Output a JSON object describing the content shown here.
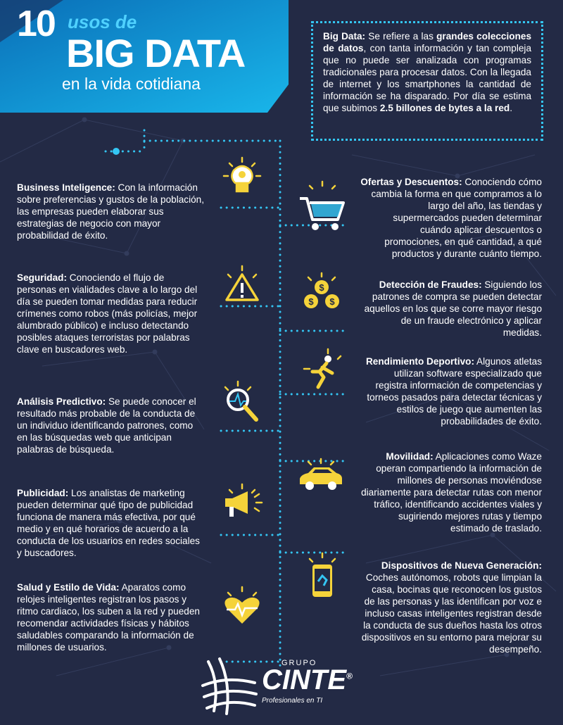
{
  "header": {
    "number": "10",
    "usos": "usos de",
    "big_data": "BIG DATA",
    "subtitle": "en la vida cotidiana"
  },
  "intro": {
    "term": "Big Data:",
    "p1": " Se refiere a las ",
    "bold1": "grandes colecciones de datos",
    "p2": ", con tanta información y tan compleja que no puede ser analizada con programas tradicionales para procesar datos. Con la llegada de internet y los smartphones la cantidad de información se ha disparado. Por día se estima que subimos ",
    "bold2": "2.5 billones de bytes a la red",
    "p3": "."
  },
  "items": {
    "business": {
      "title": "Business Inteligence:",
      "text": " Con la información sobre preferencias y gustos de la población, las empresas pueden elaborar sus estrategias de negocio con mayor probabilidad de éxito."
    },
    "ofertas": {
      "title": "Ofertas y Descuentos:",
      "text": " Conociendo cómo cambia la forma en que compramos a lo largo del año, las tiendas y supermercados pueden determinar cuándo aplicar descuentos o promociones, en qué cantidad, a qué productos y durante cuánto tiempo."
    },
    "seguridad": {
      "title": "Seguridad:",
      "text": " Conociendo el flujo de personas en vialidades clave a lo largo del día se pueden tomar medidas para reducir crímenes como robos (más policías, mejor alumbrado público) e incluso detectando posibles ataques terroristas por palabras clave en buscadores web."
    },
    "fraudes": {
      "title": "Detección de Fraudes:",
      "text": " Siguiendo los patrones de compra se pueden detectar aquellos en los que se corre mayor riesgo de un fraude electrónico y aplicar medidas."
    },
    "deportivo": {
      "title": "Rendimiento Deportivo:",
      "text": " Algunos atletas utilizan software especializado que registra información de competencias y torneos pasados para detectar técnicas y estilos de juego que aumenten las probabilidades de éxito."
    },
    "predictivo": {
      "title": "Análisis Predictivo:",
      "text": " Se puede conocer el resultado más probable de la conducta de un individuo identificando patrones, como en las búsquedas web que anticipan palabras de búsqueda."
    },
    "movilidad": {
      "title": "Movilidad:",
      "text": " Aplicaciones como Waze operan compartiendo la información de millones de personas moviéndose diariamente para detectar rutas con menor tráfico, identificando accidentes viales y sugiriendo mejores rutas y tiempo estimado de traslado."
    },
    "publicidad": {
      "title": "Publicidad:",
      "text": " Los analistas de marketing pueden determinar qué tipo de publicidad funciona de manera más efectiva, por qué medio y en qué horarios de acuerdo a la conducta de los usuarios en redes sociales y buscadores."
    },
    "dispositivos": {
      "title": "Dispositivos de Nueva Generación:",
      "text": " Coches autónomos, robots que limpian la casa, bocinas que reconocen los gustos de las personas y las identifican por voz e incluso casas inteligentes registran desde la conducta de sus dueños hasta los otros dispositivos en su entorno para mejorar su desempeño."
    },
    "salud": {
      "title": "Salud y Estilo de Vida:",
      "text": " Aparatos como relojes inteligentes registran los pasos y ritmo cardiaco, los suben a la red y pueden recomendar actividades físicas y hábitos saludables comparando la información de millones de usuarios."
    }
  },
  "logo": {
    "grupo": "GRUPO",
    "name": "CINTE",
    "registered": "®",
    "tagline": "Profesionales en TI"
  },
  "colors": {
    "background": "#232a45",
    "accent_blue": "#34c6f4",
    "accent_yellow": "#f5d33a"
  }
}
